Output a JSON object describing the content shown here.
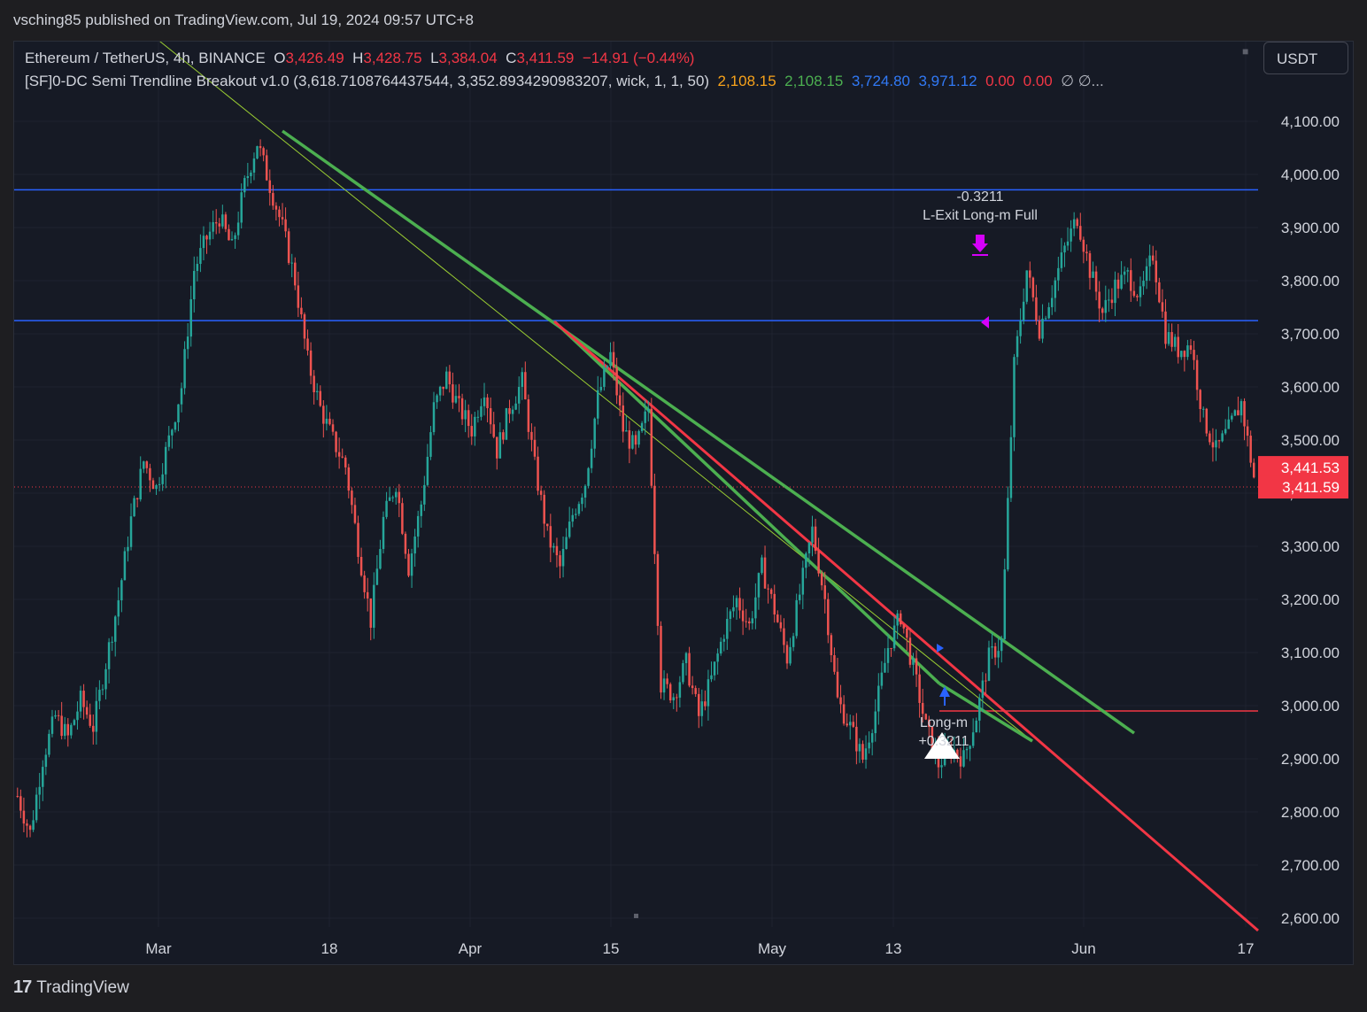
{
  "header": {
    "published": "vsching85 published on TradingView.com, Jul 19, 2024 09:57 UTC+8"
  },
  "legend": {
    "symbol": "Ethereum / TetherUS, 4h, BINANCE",
    "o_label": "O",
    "o_value": "3,426.49",
    "h_label": "H",
    "h_value": "3,428.75",
    "l_label": "L",
    "l_value": "3,384.04",
    "c_label": "C",
    "c_value": "3,411.59",
    "change": "−14.91 (−0.44%)",
    "indicator": "[SF]0-DC Semi Trendline Breakout v1.0 (3,618.7108764437544, 3,352.8934290983207, wick, 1, 1, 50)",
    "ind_v1": "2,108.15",
    "ind_v2": "2,108.15",
    "ind_v3": "3,724.80",
    "ind_v4": "3,971.12",
    "ind_v5": "0.00",
    "ind_v6": "0.00",
    "ind_tail": "∅  ∅..."
  },
  "currency_button": "USDT",
  "colors": {
    "up": "#26a69a",
    "down": "#ef5350",
    "green_line": "#4caf50",
    "red_line": "#f23645",
    "blue_line": "#2962ff",
    "thin_line": "#9acd32",
    "marker_entry": "#2962ff",
    "marker_exit": "#d500f9"
  },
  "chart_data": {
    "type": "candlestick",
    "symbol": "ETHUSDT",
    "interval": "4h",
    "ylim": [
      2600,
      4150
    ],
    "y_ticks": [
      "4,100.00",
      "4,000.00",
      "3,900.00",
      "3,800.00",
      "3,700.00",
      "3,600.00",
      "3,500.00",
      "3,400.00",
      "3,300.00",
      "3,200.00",
      "3,100.00",
      "3,000.00",
      "2,900.00",
      "2,800.00",
      "2,700.00",
      "2,600.00"
    ],
    "x_ticks": [
      "Mar",
      "18",
      "Apr",
      "15",
      "May",
      "13",
      "Jun",
      "17"
    ],
    "price_labels": {
      "upper": "3,441.53",
      "current": "3,411.59"
    },
    "close_path": [
      2830,
      2760,
      2900,
      2980,
      2940,
      3010,
      2960,
      3080,
      3200,
      3350,
      3460,
      3410,
      3500,
      3600,
      3820,
      3880,
      3920,
      3860,
      3980,
      4060,
      3980,
      3900,
      3800,
      3650,
      3560,
      3500,
      3450,
      3300,
      3160,
      3350,
      3420,
      3260,
      3380,
      3560,
      3620,
      3560,
      3520,
      3600,
      3480,
      3560,
      3610,
      3450,
      3320,
      3260,
      3360,
      3420,
      3580,
      3660,
      3520,
      3480,
      3560,
      3040,
      3020,
      3080,
      2980,
      3050,
      3140,
      3200,
      3150,
      3260,
      3180,
      3090,
      3210,
      3330,
      3200,
      3010,
      2960,
      2900,
      2990,
      3110,
      3170,
      3070,
      2960,
      2890,
      2920,
      2900,
      2980,
      3090,
      3120,
      3640,
      3820,
      3710,
      3780,
      3860,
      3920,
      3820,
      3740,
      3790,
      3810,
      3770,
      3850,
      3700,
      3670,
      3680,
      3540,
      3480,
      3520,
      3570,
      3430
    ],
    "horizontal_levels": [
      {
        "price": 3971.12,
        "color": "blue"
      },
      {
        "price": 3724.8,
        "color": "blue"
      },
      {
        "price": 2990,
        "color": "red"
      }
    ],
    "annotations": [
      {
        "text": "-0.3211",
        "kind": "exit-pnl"
      },
      {
        "text": "L-Exit Long-m Full",
        "kind": "exit"
      },
      {
        "text": "Long-m",
        "kind": "entry"
      },
      {
        "text": "+0.3211",
        "kind": "entry-size"
      }
    ]
  }
}
